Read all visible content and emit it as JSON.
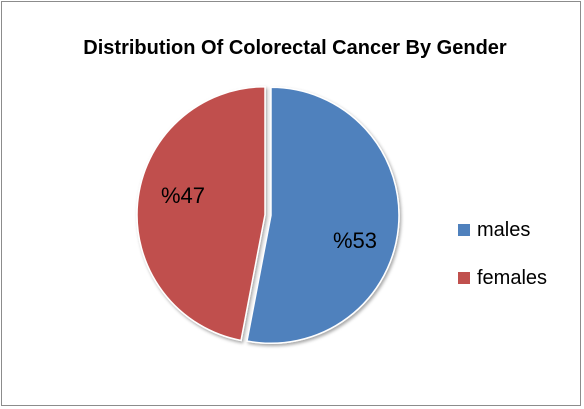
{
  "chart_data": {
    "type": "pie",
    "title": "Distribution Of Colorectal Cancer By Gender",
    "categories": [
      "males",
      "females"
    ],
    "values": [
      53,
      47
    ],
    "data_labels": [
      "%53",
      "%47"
    ],
    "colors": [
      "#4f81bd",
      "#c0504d"
    ],
    "legend_position": "right"
  }
}
